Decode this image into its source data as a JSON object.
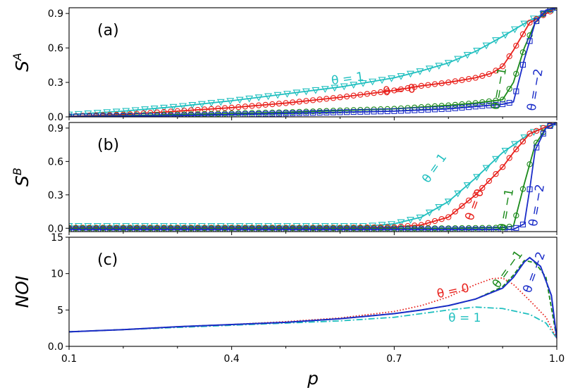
{
  "chart_data": [
    {
      "id": "a",
      "type": "line",
      "panel_label": "(a)",
      "ylabel": "S",
      "ylabel_sup": "A",
      "xlim": [
        0.1,
        1.0
      ],
      "ylim": [
        0.0,
        0.95
      ],
      "yticks": [
        "0.0",
        "0.3",
        "0.6",
        "0.9"
      ],
      "ytick_values": [
        0.0,
        0.3,
        0.6,
        0.9
      ],
      "series": [
        {
          "name": "θ = 1",
          "color": "#1fbfbf",
          "marker": "triangle-down",
          "x": [
            0.1,
            0.2,
            0.3,
            0.4,
            0.5,
            0.6,
            0.7,
            0.75,
            0.8,
            0.85,
            0.9,
            0.95,
            1.0
          ],
          "values": [
            0.02,
            0.05,
            0.09,
            0.14,
            0.2,
            0.26,
            0.34,
            0.4,
            0.47,
            0.57,
            0.7,
            0.84,
            0.95
          ]
        },
        {
          "name": "θ = 0",
          "color": "#e8211c",
          "marker": "circle",
          "x": [
            0.1,
            0.2,
            0.3,
            0.4,
            0.5,
            0.6,
            0.7,
            0.75,
            0.8,
            0.85,
            0.88,
            0.9,
            0.92,
            0.95,
            1.0
          ],
          "values": [
            0.005,
            0.02,
            0.05,
            0.08,
            0.12,
            0.17,
            0.23,
            0.27,
            0.3,
            0.34,
            0.38,
            0.44,
            0.58,
            0.82,
            0.95
          ]
        },
        {
          "name": "θ = −1",
          "color": "#1a8a1a",
          "marker": "circle",
          "x": [
            0.1,
            0.3,
            0.5,
            0.7,
            0.8,
            0.85,
            0.9,
            0.92,
            0.94,
            0.96,
            0.98,
            1.0
          ],
          "values": [
            0.003,
            0.02,
            0.04,
            0.07,
            0.1,
            0.12,
            0.15,
            0.3,
            0.6,
            0.82,
            0.92,
            0.95
          ]
        },
        {
          "name": "θ = −2",
          "color": "#1a2cc8",
          "marker": "square",
          "x": [
            0.1,
            0.3,
            0.5,
            0.7,
            0.8,
            0.85,
            0.9,
            0.92,
            0.94,
            0.96,
            0.98,
            1.0
          ],
          "values": [
            0.002,
            0.01,
            0.03,
            0.05,
            0.07,
            0.09,
            0.11,
            0.13,
            0.5,
            0.82,
            0.93,
            0.95
          ]
        }
      ],
      "annotations": [
        {
          "text": "θ = 1",
          "color": "#1fbfbf",
          "x": 0.615,
          "y": 0.3,
          "rotate": -8
        },
        {
          "text": "θ = 0",
          "color": "#e8211c",
          "x": 0.71,
          "y": 0.2,
          "rotate": -6
        },
        {
          "text": "θ = −1",
          "color": "#1a8a1a",
          "x": 0.9,
          "y": 0.24,
          "rotate": -80
        },
        {
          "text": "θ = −2",
          "color": "#1a2cc8",
          "x": 0.967,
          "y": 0.23,
          "rotate": -80
        }
      ]
    },
    {
      "id": "b",
      "type": "line",
      "panel_label": "(b)",
      "ylabel": "S",
      "ylabel_sup": "B",
      "xlim": [
        0.1,
        1.0
      ],
      "ylim": [
        -0.03,
        0.95
      ],
      "yticks": [
        "0.0",
        "0.3",
        "0.6",
        "0.9"
      ],
      "ytick_values": [
        0.0,
        0.3,
        0.6,
        0.9
      ],
      "series": [
        {
          "name": "θ = 1",
          "color": "#1fbfbf",
          "marker": "triangle-down",
          "x": [
            0.1,
            0.5,
            0.65,
            0.7,
            0.75,
            0.8,
            0.85,
            0.9,
            0.95,
            1.0
          ],
          "values": [
            0.02,
            0.02,
            0.02,
            0.04,
            0.1,
            0.24,
            0.45,
            0.68,
            0.85,
            0.95
          ]
        },
        {
          "name": "θ = 0",
          "color": "#e8211c",
          "marker": "circle",
          "x": [
            0.1,
            0.6,
            0.7,
            0.75,
            0.8,
            0.85,
            0.88,
            0.9,
            0.92,
            0.95,
            1.0
          ],
          "values": [
            0.005,
            0.005,
            0.01,
            0.03,
            0.1,
            0.3,
            0.45,
            0.55,
            0.68,
            0.85,
            0.95
          ]
        },
        {
          "name": "θ = −1",
          "color": "#1a8a1a",
          "marker": "circle",
          "x": [
            0.1,
            0.8,
            0.9,
            0.92,
            0.94,
            0.96,
            0.98,
            1.0
          ],
          "values": [
            0.0,
            0.0,
            0.005,
            0.02,
            0.4,
            0.75,
            0.9,
            0.95
          ]
        },
        {
          "name": "θ = −2",
          "color": "#1a2cc8",
          "marker": "square",
          "x": [
            0.1,
            0.8,
            0.9,
            0.92,
            0.94,
            0.95,
            0.96,
            0.98,
            1.0
          ],
          "values": [
            -0.01,
            -0.01,
            -0.01,
            -0.01,
            0.04,
            0.35,
            0.7,
            0.9,
            0.95
          ]
        }
      ],
      "annotations": [
        {
          "text": "θ = 1",
          "color": "#1fbfbf",
          "x": 0.78,
          "y": 0.52,
          "rotate": -55
        },
        {
          "text": "θ = 0",
          "color": "#e8211c",
          "x": 0.855,
          "y": 0.2,
          "rotate": -70
        },
        {
          "text": "θ = −1",
          "color": "#1a8a1a",
          "x": 0.913,
          "y": 0.16,
          "rotate": -80
        },
        {
          "text": "θ = −2",
          "color": "#1a2cc8",
          "x": 0.97,
          "y": 0.2,
          "rotate": -80
        }
      ]
    },
    {
      "id": "c",
      "type": "line",
      "panel_label": "(c)",
      "ylabel": "NOI",
      "ylabel_sup": "",
      "xlabel": "p",
      "xlim": [
        0.1,
        1.0
      ],
      "ylim": [
        0.0,
        15.0
      ],
      "yticks": [
        "0.0",
        "5",
        "10",
        "15"
      ],
      "ytick_values": [
        0,
        5,
        10,
        15
      ],
      "xticks": [
        "0.1",
        "0.4",
        "0.7",
        "1.0"
      ],
      "xtick_values": [
        0.1,
        0.4,
        0.7,
        1.0
      ],
      "series": [
        {
          "name": "θ = 1",
          "color": "#1fbfbf",
          "style": "dashdot",
          "x": [
            0.1,
            0.2,
            0.3,
            0.4,
            0.5,
            0.6,
            0.7,
            0.75,
            0.8,
            0.85,
            0.9,
            0.95,
            0.98,
            1.0
          ],
          "values": [
            2.0,
            2.3,
            2.6,
            2.9,
            3.2,
            3.5,
            4.0,
            4.5,
            5.0,
            5.4,
            5.2,
            4.4,
            3.2,
            1.1
          ]
        },
        {
          "name": "θ = 0",
          "color": "#e8211c",
          "style": "dotted",
          "x": [
            0.1,
            0.2,
            0.3,
            0.4,
            0.5,
            0.6,
            0.7,
            0.75,
            0.8,
            0.85,
            0.88,
            0.9,
            0.92,
            0.95,
            0.98,
            1.0
          ],
          "values": [
            2.0,
            2.3,
            2.7,
            3.0,
            3.4,
            3.9,
            4.8,
            5.6,
            6.8,
            8.5,
            9.3,
            9.4,
            8.5,
            6.3,
            4.0,
            1.1
          ]
        },
        {
          "name": "θ = −1",
          "color": "#1a8a1a",
          "style": "dashed",
          "x": [
            0.1,
            0.2,
            0.3,
            0.4,
            0.5,
            0.6,
            0.7,
            0.75,
            0.8,
            0.85,
            0.9,
            0.92,
            0.94,
            0.96,
            0.98,
            1.0
          ],
          "values": [
            2.0,
            2.3,
            2.7,
            3.0,
            3.3,
            3.8,
            4.5,
            5.0,
            5.6,
            6.5,
            8.2,
            9.8,
            11.8,
            11.5,
            9.5,
            1.1
          ]
        },
        {
          "name": "θ = −2",
          "color": "#1a2cc8",
          "style": "solid",
          "x": [
            0.1,
            0.2,
            0.3,
            0.4,
            0.5,
            0.6,
            0.7,
            0.75,
            0.8,
            0.85,
            0.9,
            0.92,
            0.94,
            0.95,
            0.97,
            0.99,
            1.0
          ],
          "values": [
            2.0,
            2.3,
            2.7,
            3.0,
            3.3,
            3.8,
            4.5,
            5.0,
            5.6,
            6.5,
            8.0,
            9.5,
            11.6,
            12.2,
            11.0,
            7.0,
            1.1
          ]
        }
      ],
      "annotations": [
        {
          "text": "θ = 0",
          "color": "#e8211c",
          "x": 0.81,
          "y": 7.1,
          "rotate": -12
        },
        {
          "text": "θ = 1",
          "color": "#1fbfbf",
          "x": 0.83,
          "y": 3.4,
          "rotate": 0
        },
        {
          "text": "θ = −1",
          "color": "#1a8a1a",
          "x": 0.915,
          "y": 10.3,
          "rotate": -55
        },
        {
          "text": "θ = −2",
          "color": "#1a2cc8",
          "x": 0.965,
          "y": 10.0,
          "rotate": -70
        }
      ]
    }
  ]
}
